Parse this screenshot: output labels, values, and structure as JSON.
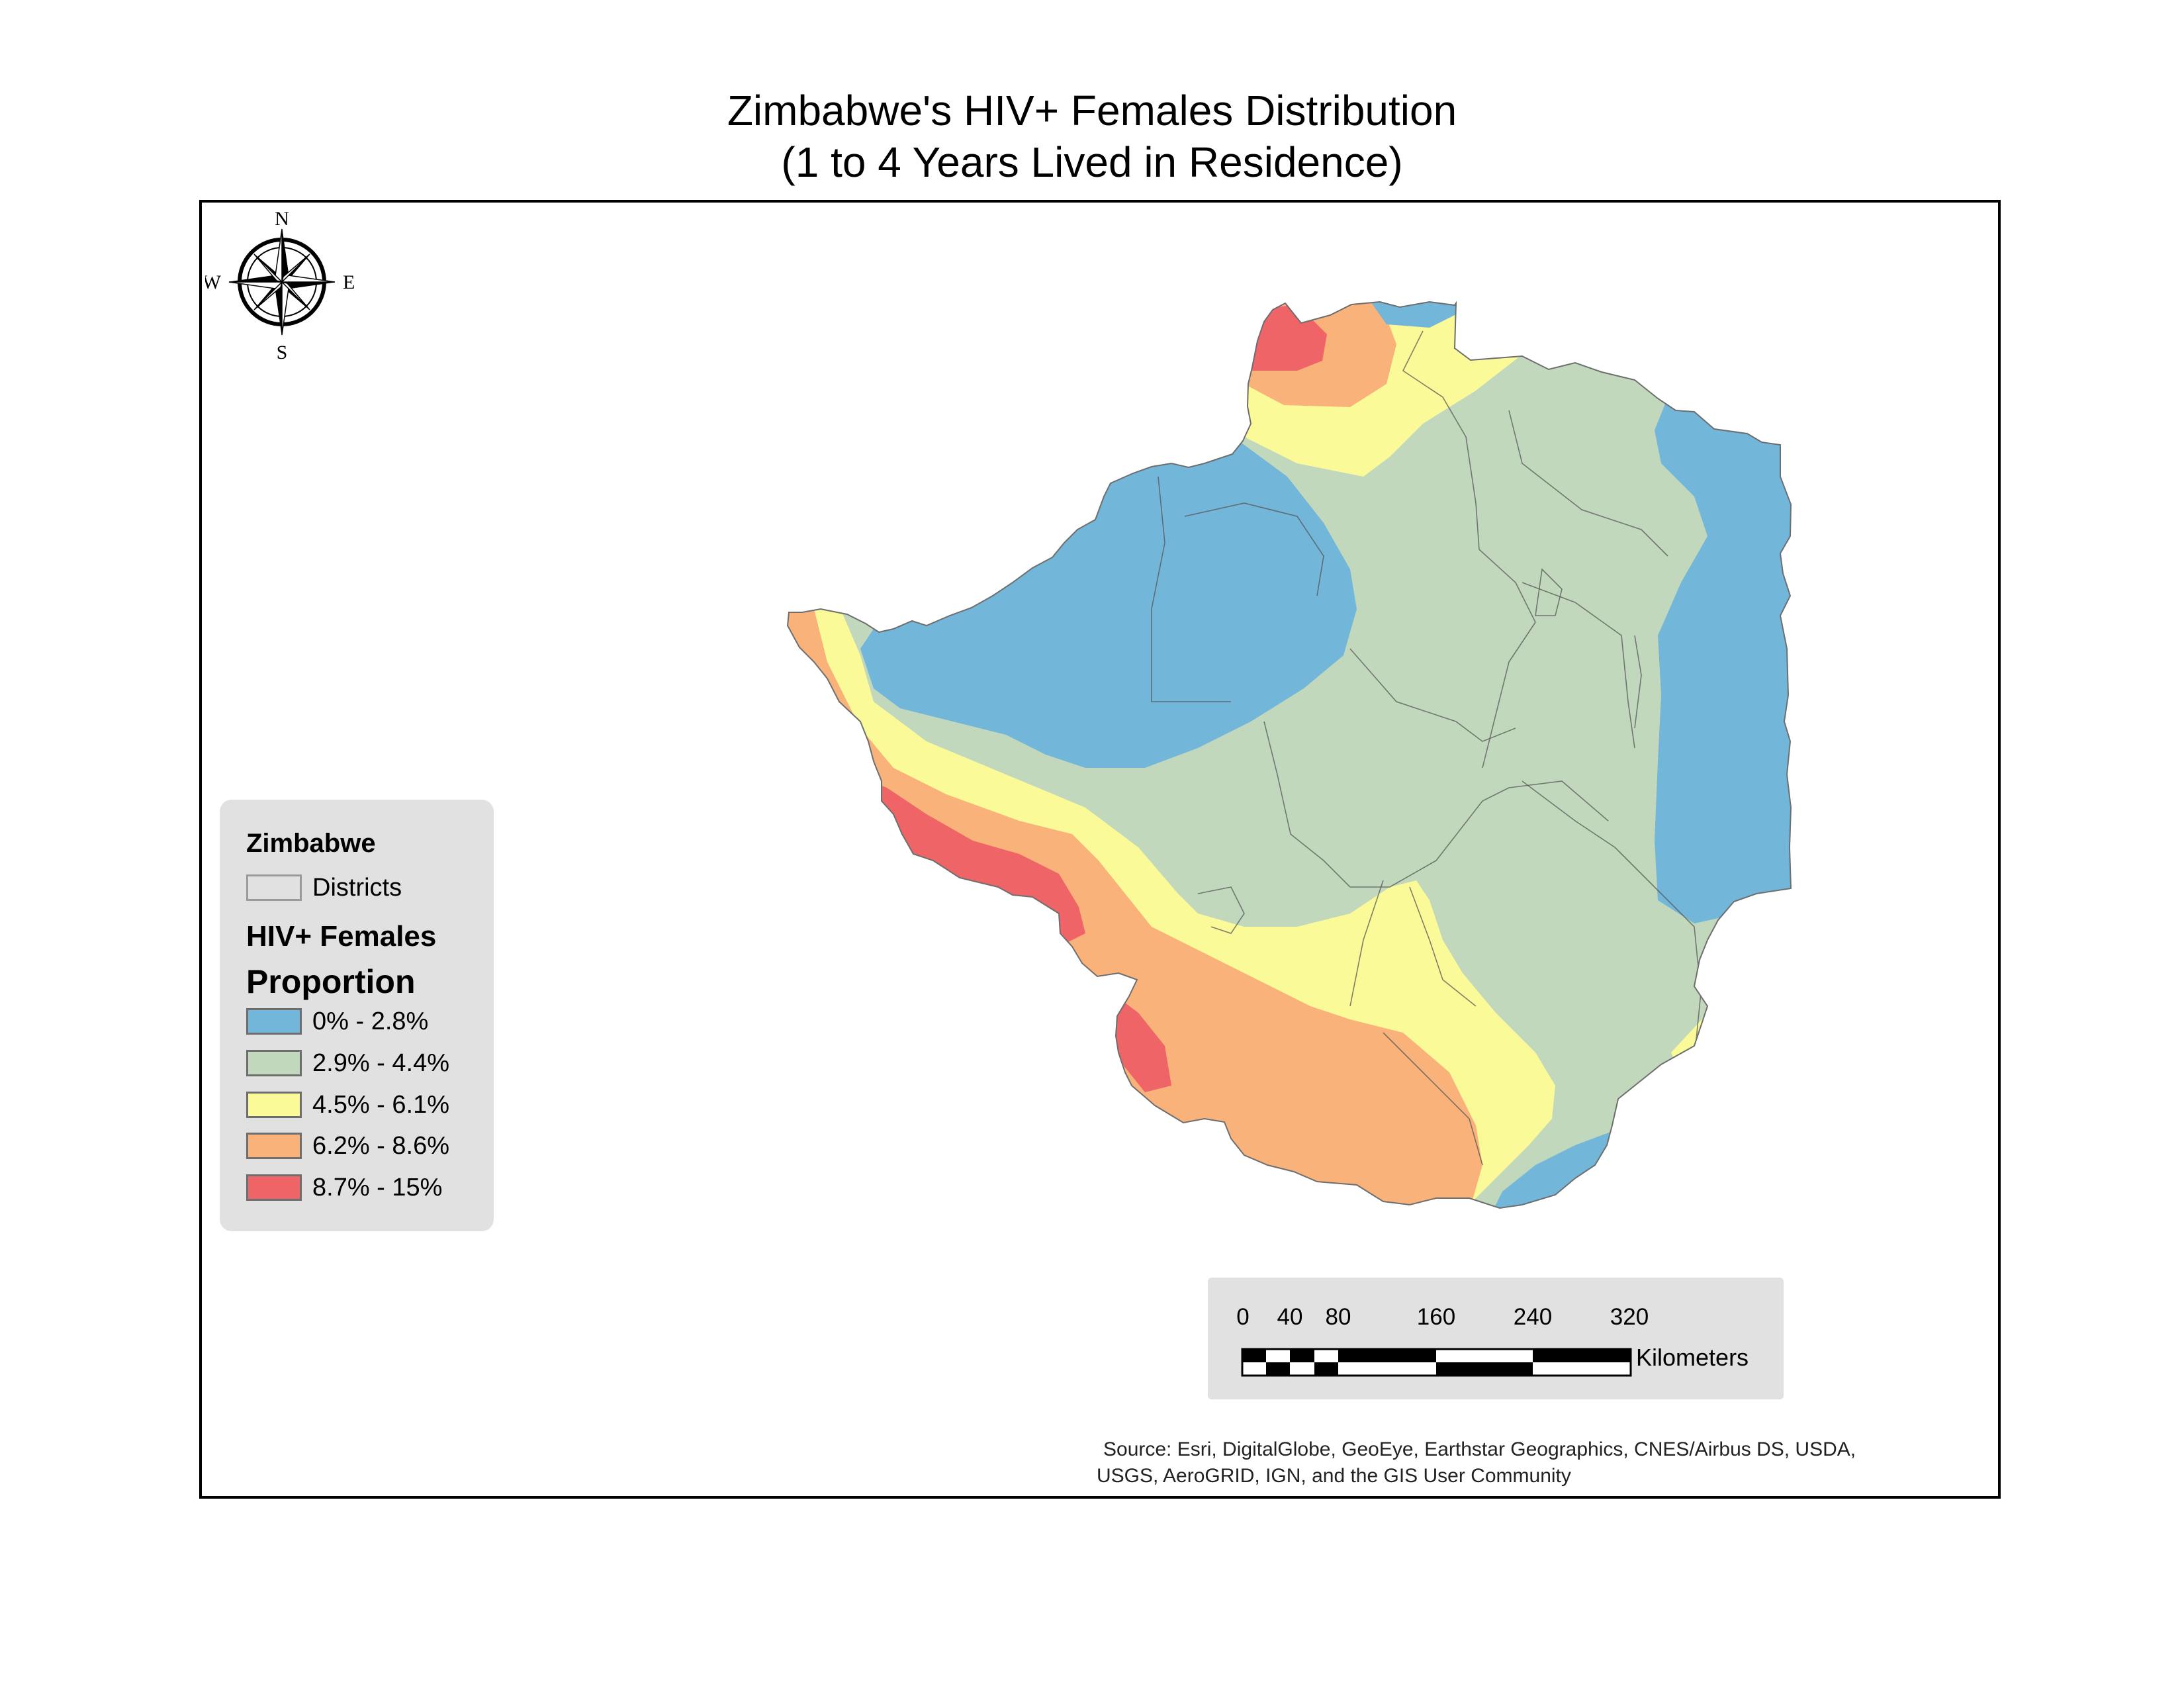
{
  "title": {
    "line1": "Zimbabwe's HIV+ Females Distribution",
    "line2": "(1 to 4 Years Lived in Residence)"
  },
  "compass": {
    "n": "N",
    "s": "S",
    "e": "E",
    "w": "W",
    "icon": "compass-rose-icon"
  },
  "legend": {
    "layer_title": "Zimbabwe",
    "districts_label": "Districts",
    "districts_color": "#e1e1e1",
    "field_title": "HIV+ Females",
    "field_subtitle": "Proportion",
    "classes": [
      {
        "label": "0% - 2.8%",
        "color": "#72b6d9"
      },
      {
        "label": "2.9% - 4.4%",
        "color": "#c2d8bd"
      },
      {
        "label": "4.5% - 6.1%",
        "color": "#fbfa98"
      },
      {
        "label": "6.2% - 8.6%",
        "color": "#f9b27a"
      },
      {
        "label": "8.7% - 15%",
        "color": "#ef6466"
      }
    ]
  },
  "scale_bar": {
    "ticks": [
      "0",
      "40",
      "80",
      "160",
      "240",
      "320"
    ],
    "unit": "Kilometers"
  },
  "source": {
    "line1": "Source: Esri, DigitalGlobe, GeoEye, Earthstar Geographics, CNES/Airbus DS, USDA,",
    "line2": "USGS, AeroGRID, IGN, and the GIS User Community"
  }
}
